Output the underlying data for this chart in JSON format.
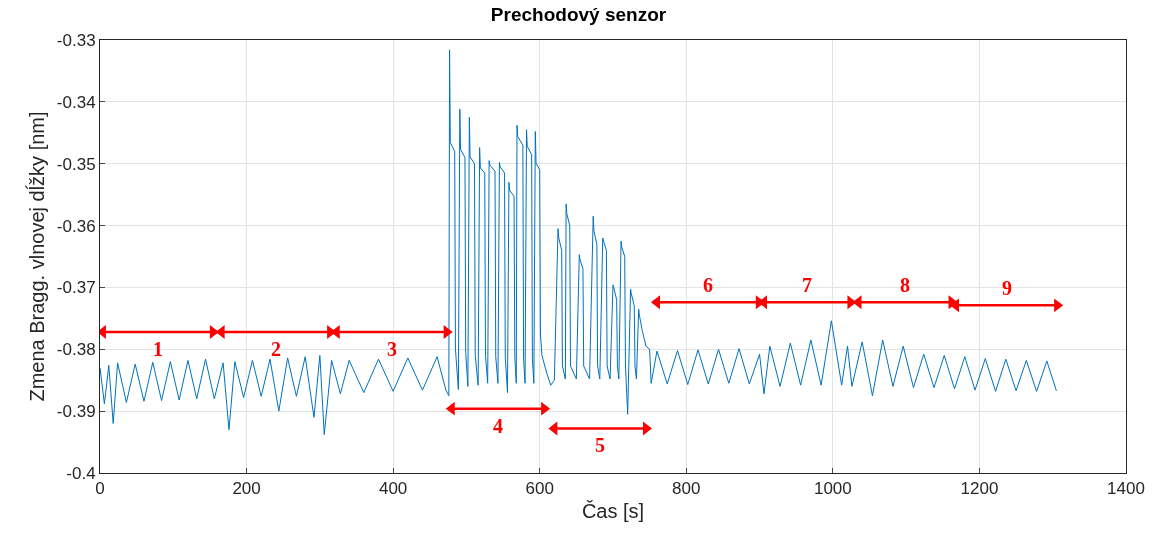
{
  "chart_data": {
    "type": "line",
    "title": "Prechodový senzor",
    "xlabel": "Čas [s]",
    "ylabel": "Zmena Bragg. vlnovej dĺžky [nm]",
    "xlim": [
      0,
      1400
    ],
    "xticks": [
      0,
      200,
      400,
      600,
      800,
      1000,
      1200,
      1400
    ],
    "ylim": [
      -0.4,
      -0.33
    ],
    "yticks": [
      -0.4,
      -0.39,
      -0.38,
      -0.37,
      -0.36,
      -0.35,
      -0.34,
      -0.33
    ],
    "grid": true,
    "marker": "none",
    "line_style": "solid",
    "series": [
      {
        "color": "#0072bd",
        "x": [
          0,
          6,
          12,
          18,
          24,
          36,
          48,
          60,
          72,
          84,
          96,
          108,
          120,
          132,
          144,
          156,
          168,
          176,
          184,
          196,
          208,
          220,
          232,
          244,
          256,
          268,
          280,
          292,
          300,
          306,
          316,
          328,
          340,
          360,
          380,
          400,
          420,
          440,
          460,
          472,
          476,
          477,
          478,
          484,
          485,
          489,
          491,
          492,
          498,
          499,
          502,
          504,
          505,
          511,
          512,
          516,
          518,
          519,
          525,
          526,
          529,
          531,
          532,
          539,
          540,
          543,
          545,
          546,
          552,
          553,
          556,
          558,
          559,
          565,
          566,
          568,
          569,
          570,
          577,
          578,
          580,
          582,
          583,
          589,
          590,
          592,
          594,
          595,
          600,
          601,
          603,
          610,
          615,
          620,
          625,
          626,
          630,
          631,
          635,
          636,
          637,
          641,
          642,
          650,
          654,
          655,
          659,
          660,
          668,
          673,
          674,
          678,
          679,
          682,
          686,
          687,
          691,
          692,
          696,
          700,
          701,
          705,
          706,
          708,
          711,
          712,
          716,
          717,
          720,
          724,
          725,
          729,
          730,
          732,
          735,
          736,
          740,
          745,
          750,
          752,
          760,
          774,
          788,
          802,
          816,
          830,
          844,
          858,
          872,
          886,
          900,
          906,
          914,
          928,
          942,
          956,
          970,
          984,
          998,
          1012,
          1020,
          1026,
          1040,
          1054,
          1068,
          1082,
          1096,
          1110,
          1124,
          1138,
          1152,
          1166,
          1180,
          1194,
          1208,
          1222,
          1236,
          1250,
          1264,
          1278,
          1292,
          1305
        ],
        "values": [
          -0.383,
          -0.3888,
          -0.3826,
          -0.392,
          -0.3822,
          -0.3886,
          -0.3824,
          -0.3884,
          -0.3821,
          -0.3883,
          -0.382,
          -0.3882,
          -0.3818,
          -0.388,
          -0.3816,
          -0.388,
          -0.3822,
          -0.393,
          -0.382,
          -0.3878,
          -0.3818,
          -0.3876,
          -0.3816,
          -0.39,
          -0.3814,
          -0.3876,
          -0.3812,
          -0.391,
          -0.381,
          -0.3938,
          -0.3818,
          -0.3872,
          -0.3818,
          -0.387,
          -0.3816,
          -0.3868,
          -0.3814,
          -0.3866,
          -0.3812,
          -0.3866,
          -0.3875,
          -0.3316,
          -0.3466,
          -0.348,
          -0.38,
          -0.3865,
          -0.3412,
          -0.3477,
          -0.349,
          -0.3805,
          -0.386,
          -0.3425,
          -0.3489,
          -0.35,
          -0.381,
          -0.3858,
          -0.3474,
          -0.3507,
          -0.3515,
          -0.381,
          -0.3855,
          -0.3495,
          -0.3502,
          -0.3512,
          -0.3812,
          -0.3855,
          -0.3498,
          -0.3505,
          -0.3515,
          -0.3812,
          -0.387,
          -0.353,
          -0.3543,
          -0.3553,
          -0.3812,
          -0.3855,
          -0.3438,
          -0.3456,
          -0.347,
          -0.3815,
          -0.3855,
          -0.3445,
          -0.3472,
          -0.3485,
          -0.3815,
          -0.3855,
          -0.3448,
          -0.3499,
          -0.351,
          -0.3775,
          -0.381,
          -0.384,
          -0.3858,
          -0.385,
          -0.3605,
          -0.362,
          -0.364,
          -0.3827,
          -0.3848,
          -0.3565,
          -0.3581,
          -0.36,
          -0.3827,
          -0.3848,
          -0.3647,
          -0.3655,
          -0.367,
          -0.3827,
          -0.3848,
          -0.3585,
          -0.3609,
          -0.363,
          -0.3827,
          -0.3848,
          -0.362,
          -0.3625,
          -0.364,
          -0.3827,
          -0.3848,
          -0.3696,
          -0.37,
          -0.372,
          -0.3827,
          -0.3848,
          -0.3625,
          -0.3635,
          -0.365,
          -0.3827,
          -0.3905,
          -0.3703,
          -0.371,
          -0.373,
          -0.3827,
          -0.3848,
          -0.3735,
          -0.3745,
          -0.377,
          -0.3795,
          -0.38,
          -0.3855,
          -0.3803,
          -0.3856,
          -0.3802,
          -0.3857,
          -0.3801,
          -0.3856,
          -0.38,
          -0.3855,
          -0.3799,
          -0.3856,
          -0.3808,
          -0.3872,
          -0.3795,
          -0.386,
          -0.379,
          -0.3858,
          -0.3785,
          -0.3858,
          -0.3754,
          -0.3858,
          -0.3795,
          -0.386,
          -0.3788,
          -0.3875,
          -0.3785,
          -0.386,
          -0.3795,
          -0.3862,
          -0.3808,
          -0.3862,
          -0.381,
          -0.3864,
          -0.3812,
          -0.3866,
          -0.3815,
          -0.3868,
          -0.3816,
          -0.3867,
          -0.3818,
          -0.3868,
          -0.3819,
          -0.3867
        ]
      },
      {
        "type": "line",
        "name": "1",
        "color": "#ff0000",
        "marker": "triangle",
        "x": [
          4,
          154
        ],
        "values": [
          -0.3772,
          -0.3772
        ]
      },
      {
        "type": "line",
        "name": "2",
        "color": "#ff0000",
        "marker": "triangle",
        "x": [
          166,
          314
        ],
        "values": [
          -0.3772,
          -0.3772
        ]
      },
      {
        "type": "line",
        "name": "3",
        "color": "#ff0000",
        "marker": "triangle",
        "x": [
          323,
          473
        ],
        "values": [
          -0.3772,
          -0.3772
        ]
      },
      {
        "type": "line",
        "name": "4",
        "color": "#ff0000",
        "marker": "triangle",
        "x": [
          480,
          606
        ],
        "values": [
          -0.3896,
          -0.3896
        ]
      },
      {
        "type": "line",
        "name": "5",
        "color": "#ff0000",
        "marker": "triangle",
        "x": [
          620,
          745
        ],
        "values": [
          -0.3928,
          -0.3928
        ]
      },
      {
        "type": "line",
        "name": "6",
        "color": "#ff0000",
        "marker": "triangle",
        "x": [
          760,
          899
        ],
        "values": [
          -0.3724,
          -0.3724
        ]
      },
      {
        "type": "line",
        "name": "7",
        "color": "#ff0000",
        "marker": "triangle",
        "x": [
          906,
          1024
        ],
        "values": [
          -0.3724,
          -0.3724
        ]
      },
      {
        "type": "line",
        "name": "8",
        "color": "#ff0000",
        "marker": "triangle",
        "x": [
          1035,
          1162
        ],
        "values": [
          -0.3724,
          -0.3724
        ]
      },
      {
        "type": "line",
        "name": "9",
        "color": "#ff0000",
        "marker": "triangle",
        "x": [
          1168,
          1306
        ],
        "values": [
          -0.3729,
          -0.3729
        ]
      }
    ]
  }
}
